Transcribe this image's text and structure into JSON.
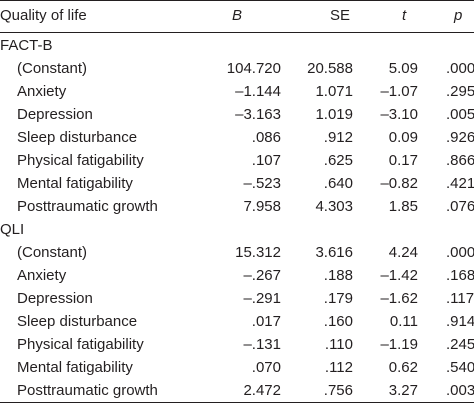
{
  "header": {
    "label": "Quality of life",
    "b": "B",
    "se": "SE",
    "t": "t",
    "p": "p"
  },
  "sections": [
    {
      "title": "FACT-B",
      "rows": [
        {
          "label": "(Constant)",
          "b": "104.720",
          "se": "20.588",
          "t": "5.09",
          "p": ".000"
        },
        {
          "label": "Anxiety",
          "b": "–1.144",
          "se": "1.071",
          "t": "–1.07",
          "p": ".295"
        },
        {
          "label": "Depression",
          "b": "–3.163",
          "se": "1.019",
          "t": "–3.10",
          "p": ".005"
        },
        {
          "label": "Sleep disturbance",
          "b": ".086",
          "se": ".912",
          "t": "0.09",
          "p": ".926"
        },
        {
          "label": "Physical fatigability",
          "b": ".107",
          "se": ".625",
          "t": "0.17",
          "p": ".866"
        },
        {
          "label": "Mental fatigability",
          "b": "–.523",
          "se": ".640",
          "t": "–0.82",
          "p": ".421"
        },
        {
          "label": "Posttraumatic growth",
          "b": "7.958",
          "se": "4.303",
          "t": "1.85",
          "p": ".076"
        }
      ]
    },
    {
      "title": "QLI",
      "rows": [
        {
          "label": "(Constant)",
          "b": "15.312",
          "se": "3.616",
          "t": "4.24",
          "p": ".000"
        },
        {
          "label": "Anxiety",
          "b": "–.267",
          "se": ".188",
          "t": "–1.42",
          "p": ".168"
        },
        {
          "label": "Depression",
          "b": "–.291",
          "se": ".179",
          "t": "–1.62",
          "p": ".117"
        },
        {
          "label": "Sleep disturbance",
          "b": ".017",
          "se": ".160",
          "t": "0.11",
          "p": ".914"
        },
        {
          "label": "Physical fatigability",
          "b": "–.131",
          "se": ".110",
          "t": "–1.19",
          "p": ".245"
        },
        {
          "label": "Mental fatigability",
          "b": ".070",
          "se": ".112",
          "t": "0.62",
          "p": ".540"
        },
        {
          "label": "Posttraumatic growth",
          "b": "2.472",
          "se": ".756",
          "t": "3.27",
          "p": ".003"
        }
      ]
    }
  ]
}
